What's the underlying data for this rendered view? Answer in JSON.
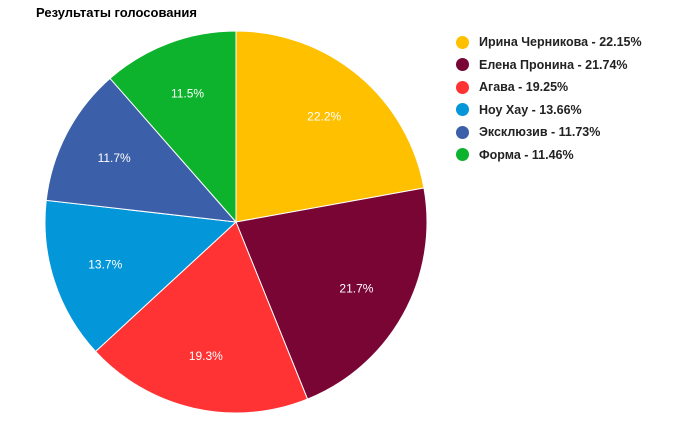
{
  "chart_data": {
    "type": "pie",
    "title": "Результаты голосования",
    "slices": [
      {
        "name": "Ирина Черникова",
        "value": 22.15,
        "legend_label": "Ирина Черникова - 22.15%",
        "data_label": "22.2%",
        "color": "#ffc000"
      },
      {
        "name": "Елена Пронина",
        "value": 21.74,
        "legend_label": "Елена Пронина - 21.74%",
        "data_label": "21.7%",
        "color": "#790535"
      },
      {
        "name": "Агава",
        "value": 19.25,
        "legend_label": "Агава - 19.25%",
        "data_label": "19.3%",
        "color": "#ff3333"
      },
      {
        "name": "Ноу Хау",
        "value": 13.66,
        "legend_label": "Ноу Хау - 13.66%",
        "data_label": "13.7%",
        "color": "#0396d8"
      },
      {
        "name": "Эксклюзив",
        "value": 11.73,
        "legend_label": "Эксклюзив - 11.73%",
        "data_label": "11.7%",
        "color": "#3b5fa8"
      },
      {
        "name": "Форма",
        "value": 11.46,
        "legend_label": "Форма - 11.46%",
        "data_label": "11.5%",
        "color": "#0db32d"
      }
    ],
    "start_angle": "12 o'clock",
    "direction": "clockwise",
    "legend_position": "right"
  }
}
